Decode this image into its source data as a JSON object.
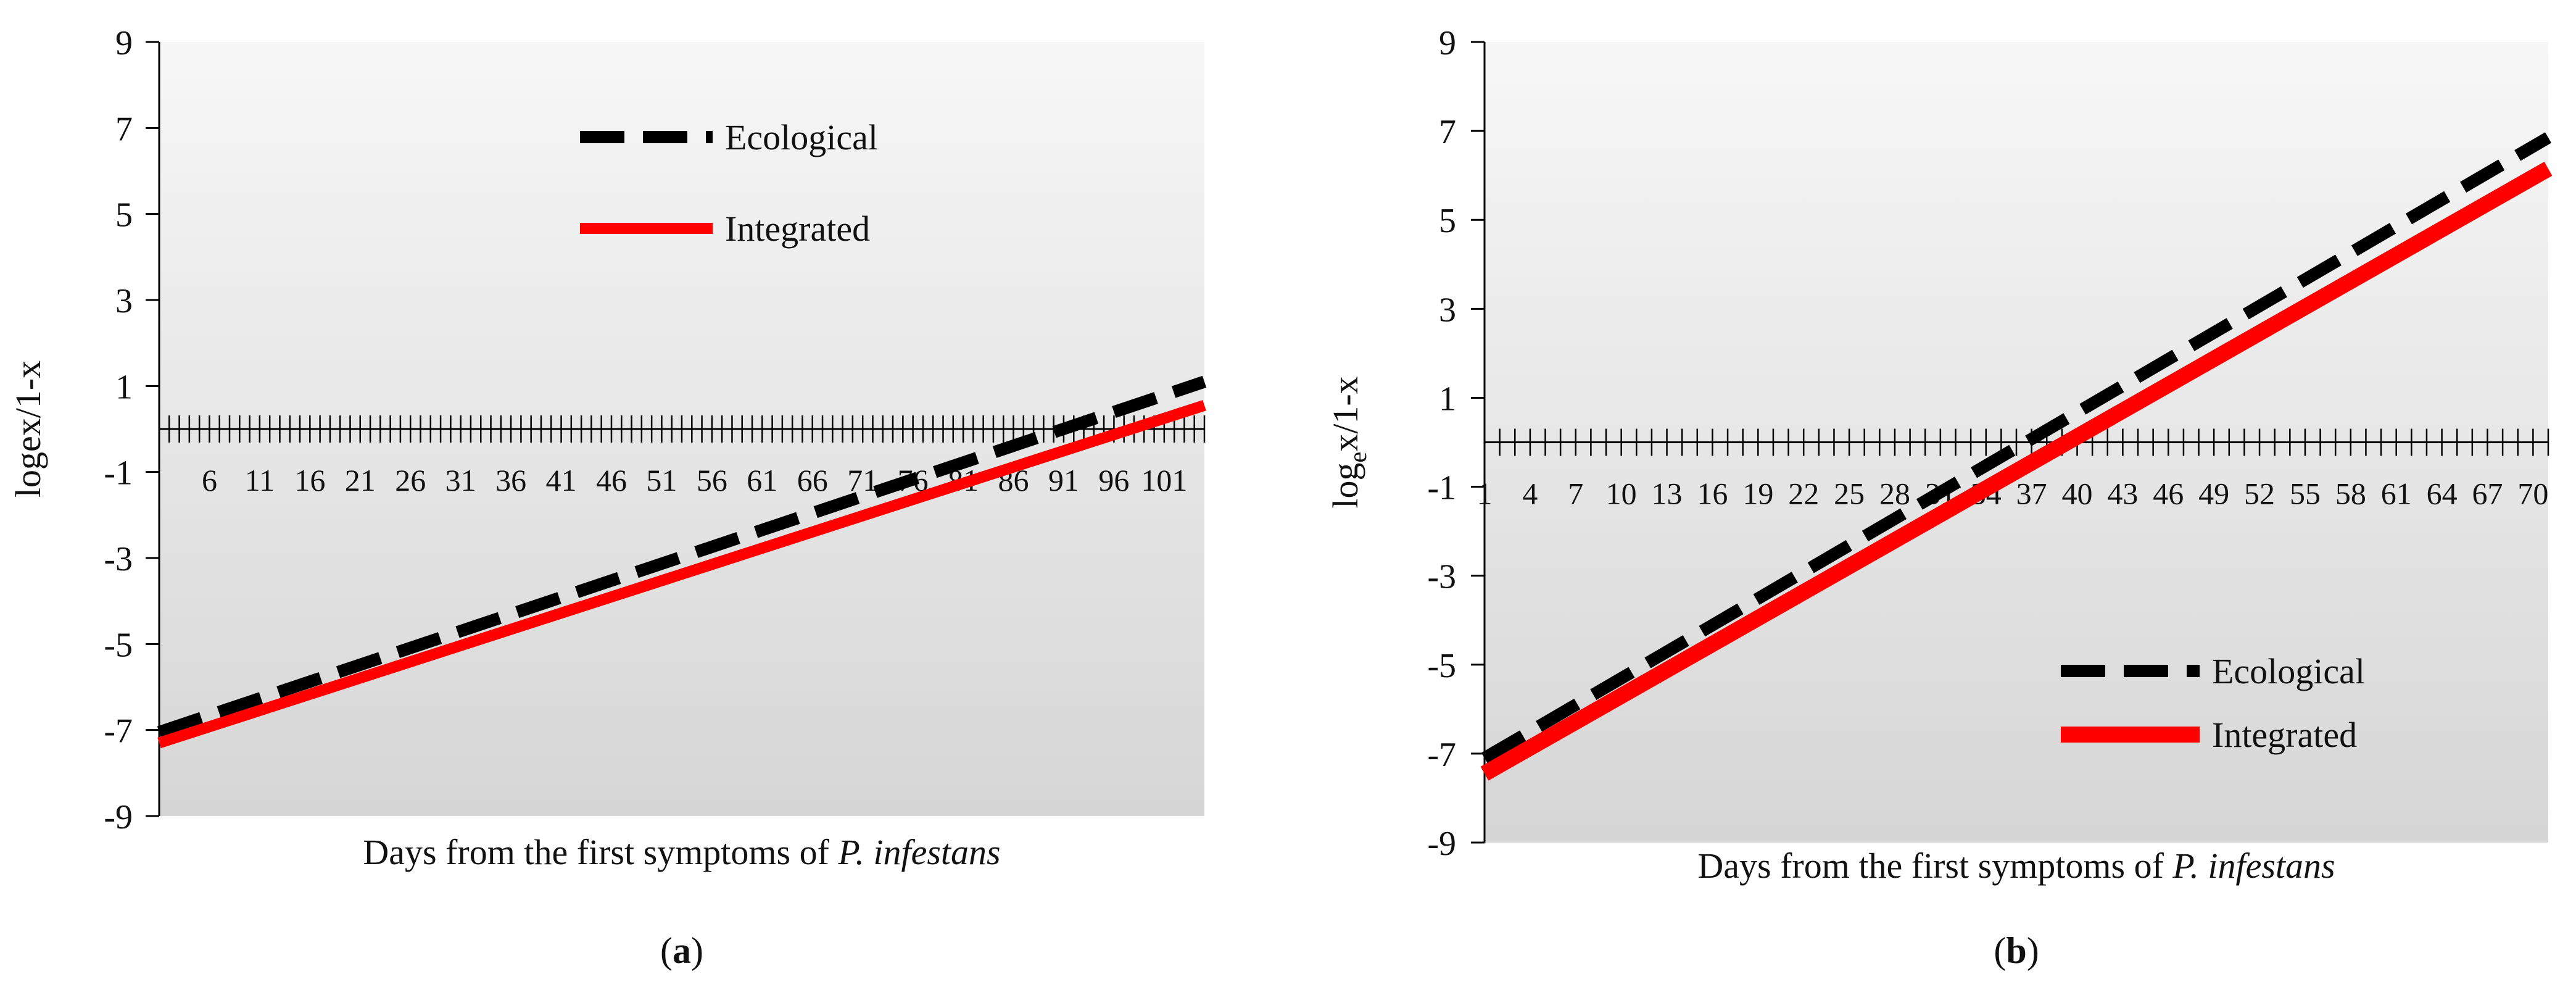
{
  "chart_data": [
    {
      "panel_label": "a",
      "type": "line",
      "xlabel_main": "Days from the first symptoms of ",
      "xlabel_italic": "P. infestans",
      "ylabel_main": "logex/1-x",
      "ylabel_sub": "",
      "ylabel_tail": "",
      "ylim": [
        -9,
        9
      ],
      "yticks": [
        9,
        7,
        5,
        3,
        1,
        -1,
        -3,
        -5,
        -7,
        -9
      ],
      "xlim": [
        1,
        105
      ],
      "xtick_labels": [
        "6",
        "11",
        "16",
        "21",
        "26",
        "31",
        "36",
        "41",
        "46",
        "51",
        "56",
        "61",
        "66",
        "71",
        "76",
        "81",
        "86",
        "91",
        "96",
        "101"
      ],
      "xtick_label_values": [
        6,
        11,
        16,
        21,
        26,
        31,
        36,
        41,
        46,
        51,
        56,
        61,
        66,
        71,
        76,
        81,
        86,
        91,
        96,
        101
      ],
      "legend": "upper-center",
      "series": [
        {
          "name": "Ecological",
          "style": "dashed",
          "color": "#000000",
          "x": [
            1,
            105
          ],
          "y": [
            -7.05,
            1.1
          ]
        },
        {
          "name": "Integrated",
          "style": "solid",
          "color": "#ff0000",
          "x": [
            1,
            105
          ],
          "y": [
            -7.3,
            0.55
          ]
        }
      ]
    },
    {
      "panel_label": "b",
      "type": "line",
      "xlabel_main": "Days from the first symptoms of ",
      "xlabel_italic": "P. infestans",
      "ylabel_main": "log",
      "ylabel_sub": "e",
      "ylabel_tail": "x/1-x",
      "ylim": [
        -9,
        9
      ],
      "yticks": [
        9,
        7,
        5,
        3,
        1,
        -1,
        -3,
        -5,
        -7,
        -9
      ],
      "xlim": [
        1,
        71
      ],
      "xtick_labels": [
        "1",
        "4",
        "7",
        "10",
        "13",
        "16",
        "19",
        "22",
        "25",
        "28",
        "31",
        "34",
        "37",
        "40",
        "43",
        "46",
        "49",
        "52",
        "55",
        "58",
        "61",
        "64",
        "67",
        "70"
      ],
      "xtick_label_values": [
        1,
        4,
        7,
        10,
        13,
        16,
        19,
        22,
        25,
        28,
        31,
        34,
        37,
        40,
        43,
        46,
        49,
        52,
        55,
        58,
        61,
        64,
        67,
        70
      ],
      "legend": "lower-right",
      "series": [
        {
          "name": "Ecological",
          "style": "dashed",
          "color": "#000000",
          "x": [
            1,
            71
          ],
          "y": [
            -7.1,
            6.85
          ]
        },
        {
          "name": "Integrated",
          "style": "solid",
          "color": "#ff0000",
          "x": [
            1,
            71
          ],
          "y": [
            -7.45,
            6.15
          ]
        }
      ]
    }
  ]
}
